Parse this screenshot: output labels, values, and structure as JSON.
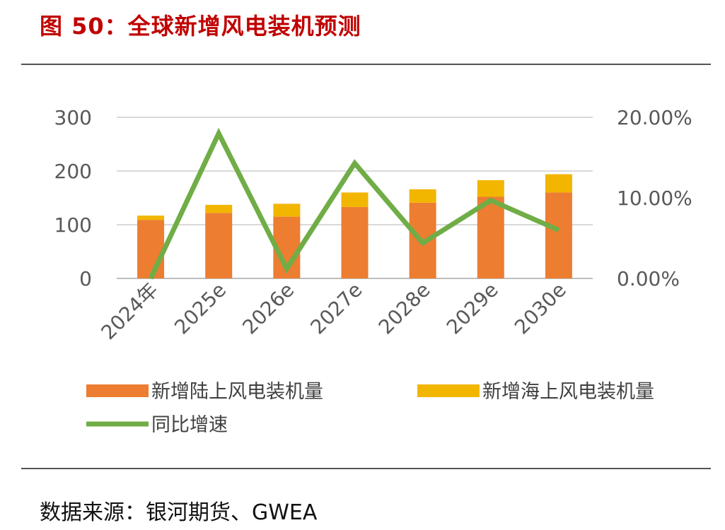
{
  "header": {
    "title": "图 50：全球新增风电装机预测"
  },
  "footer": {
    "source": "数据来源：银河期货、GWEA"
  },
  "chart_data": {
    "type": "bar",
    "categories": [
      "2024年",
      "2025e",
      "2026e",
      "2027e",
      "2028e",
      "2029e",
      "2030e"
    ],
    "series": [
      {
        "name": "新增陆上风电装机量",
        "type": "bar",
        "axis": "left",
        "color": "#ed7d31",
        "values": [
          109,
          122,
          115,
          133,
          141,
          152,
          160
        ]
      },
      {
        "name": "新增海上风电装机量",
        "type": "bar",
        "axis": "left",
        "color": "#f2b600",
        "values": [
          8,
          15,
          24,
          27,
          25,
          31,
          34
        ]
      },
      {
        "name": "同比增速",
        "type": "line",
        "axis": "right",
        "color": "#70ad47",
        "values": [
          0.0,
          18.0,
          1.2,
          14.3,
          4.4,
          9.7,
          6.0
        ]
      }
    ],
    "y_left": {
      "ticks": [
        "0",
        "100",
        "200",
        "300"
      ],
      "min": 0,
      "max": 300
    },
    "y_right": {
      "ticks": [
        "0.00%",
        "10.00%",
        "20.00%"
      ],
      "min": 0,
      "max": 20
    },
    "stacked": true,
    "grid": true,
    "legend_position": "bottom"
  }
}
